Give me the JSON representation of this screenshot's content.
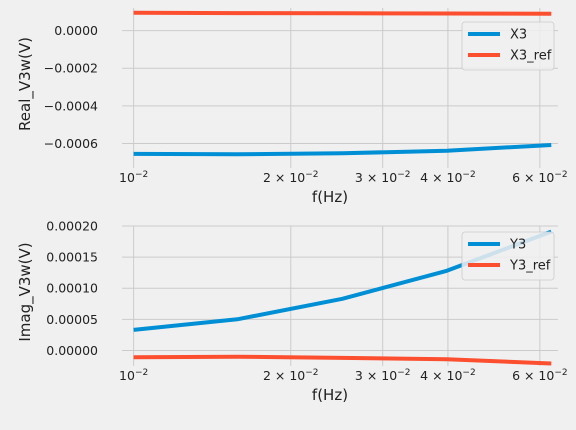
{
  "chart_data": [
    {
      "type": "line",
      "xlabel": "f(Hz)",
      "ylabel": "Real_V3w(V)",
      "xscale": "log",
      "xlim": [
        0.0095,
        0.065
      ],
      "ylim": [
        -0.00073,
        0.00012
      ],
      "grid": true,
      "legend_position": "top-right",
      "x": [
        0.01,
        0.0158,
        0.0251,
        0.0398,
        0.0631
      ],
      "xticks": [
        {
          "value": 0.01,
          "base": "10",
          "exp": "−2"
        },
        {
          "value": 0.02,
          "base": "2 × 10",
          "exp": "−2"
        },
        {
          "value": 0.03,
          "base": "3 × 10",
          "exp": "−2"
        },
        {
          "value": 0.04,
          "base": "4 × 10",
          "exp": "−2"
        },
        {
          "value": 0.06,
          "base": "6 × 10",
          "exp": "−2"
        }
      ],
      "yticks": [
        {
          "value": 0.0,
          "label": "0.0000"
        },
        {
          "value": -0.0002,
          "label": "−0.0002"
        },
        {
          "value": -0.0004,
          "label": "−0.0004"
        },
        {
          "value": -0.0006,
          "label": "−0.0006"
        }
      ],
      "series": [
        {
          "name": "X3",
          "color": "#008fd5",
          "values": [
            -0.000655,
            -0.000657,
            -0.000652,
            -0.000638,
            -0.000608
          ]
        },
        {
          "name": "X3_ref",
          "color": "#fc4f30",
          "values": [
            9.5e-05,
            9.3e-05,
            9.2e-05,
            9.1e-05,
            8.9e-05
          ]
        }
      ]
    },
    {
      "type": "line",
      "xlabel": "f(Hz)",
      "ylabel": "Imag_V3w(V)",
      "xscale": "log",
      "xlim": [
        0.0095,
        0.065
      ],
      "ylim": [
        -2.5e-05,
        0.0002
      ],
      "grid": true,
      "legend_position": "top-right",
      "x": [
        0.01,
        0.0158,
        0.0251,
        0.0398,
        0.0631
      ],
      "xticks": [
        {
          "value": 0.01,
          "base": "10",
          "exp": "−2"
        },
        {
          "value": 0.02,
          "base": "2 × 10",
          "exp": "−2"
        },
        {
          "value": 0.03,
          "base": "3 × 10",
          "exp": "−2"
        },
        {
          "value": 0.04,
          "base": "4 × 10",
          "exp": "−2"
        },
        {
          "value": 0.06,
          "base": "6 × 10",
          "exp": "−2"
        }
      ],
      "yticks": [
        {
          "value": 0.0,
          "label": "0.00000"
        },
        {
          "value": 5e-05,
          "label": "0.00005"
        },
        {
          "value": 0.0001,
          "label": "0.00010"
        },
        {
          "value": 0.00015,
          "label": "0.00015"
        },
        {
          "value": 0.0002,
          "label": "0.00020"
        }
      ],
      "series": [
        {
          "name": "Y3",
          "color": "#008fd5",
          "values": [
            3.3e-05,
            5e-05,
            8.3e-05,
            0.000128,
            0.000191
          ]
        },
        {
          "name": "Y3_ref",
          "color": "#fc4f30",
          "values": [
            -1.1e-05,
            -1e-05,
            -1.2e-05,
            -1.4e-05,
            -2.1e-05
          ]
        }
      ]
    }
  ]
}
